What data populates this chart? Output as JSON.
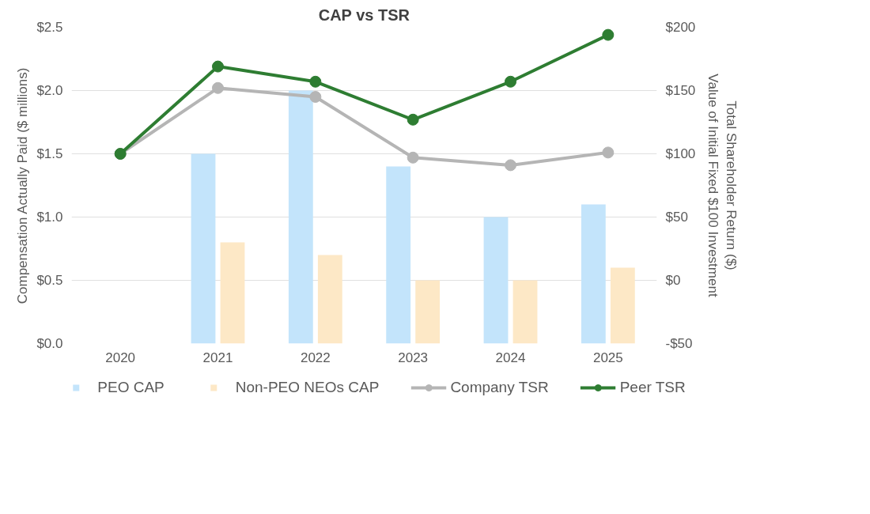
{
  "chart_data": {
    "type": "bar",
    "title": "CAP vs TSR",
    "ylabel": "Compensation Actually Paid ($ millions)",
    "y2label": "Total Shareholder Return ($)\nValue of Initial Fixed $100 Investment",
    "categories": [
      "2020",
      "2021",
      "2022",
      "2023",
      "2024",
      "2025"
    ],
    "series": [
      {
        "name": "PEO CAP",
        "type": "bar",
        "color": "#c3e4fb",
        "values": [
          null,
          1.5,
          2.0,
          1.4,
          1.0,
          1.1
        ]
      },
      {
        "name": "Non-PEO NEOs CAP",
        "type": "bar",
        "color": "#fde8c6",
        "values": [
          null,
          0.8,
          0.7,
          0.5,
          0.5,
          0.6
        ]
      },
      {
        "name": "Company TSR",
        "type": "line",
        "axis": "y2",
        "color": "#b5b5b5",
        "values": [
          100,
          152,
          145,
          97,
          91,
          101
        ]
      },
      {
        "name": "Peer TSR",
        "type": "line",
        "axis": "y2",
        "color": "#2e7d32",
        "values": [
          100,
          169,
          157,
          127,
          157,
          194
        ]
      }
    ],
    "ylim": [
      0,
      2.5
    ],
    "yticks": [
      {
        "value": 0,
        "label": "$0.0"
      },
      {
        "value": 0.5,
        "label": "$0.5"
      },
      {
        "value": 1,
        "label": "$1.0"
      },
      {
        "value": 1.5,
        "label": "$1.5"
      },
      {
        "value": 2,
        "label": "$2.0"
      },
      {
        "value": 2.5,
        "label": "$2.5"
      }
    ],
    "y2lim": [
      -50,
      200
    ],
    "y2ticks": [
      {
        "value": -50,
        "label": "-$50"
      },
      {
        "value": 0,
        "label": "$0"
      },
      {
        "value": 50,
        "label": "$50"
      },
      {
        "value": 100,
        "label": "$100"
      },
      {
        "value": 150,
        "label": "$150"
      },
      {
        "value": 200,
        "label": "$200"
      }
    ],
    "grid": "y",
    "legend": "bottom",
    "marker": "circle",
    "line_style": "solid"
  }
}
